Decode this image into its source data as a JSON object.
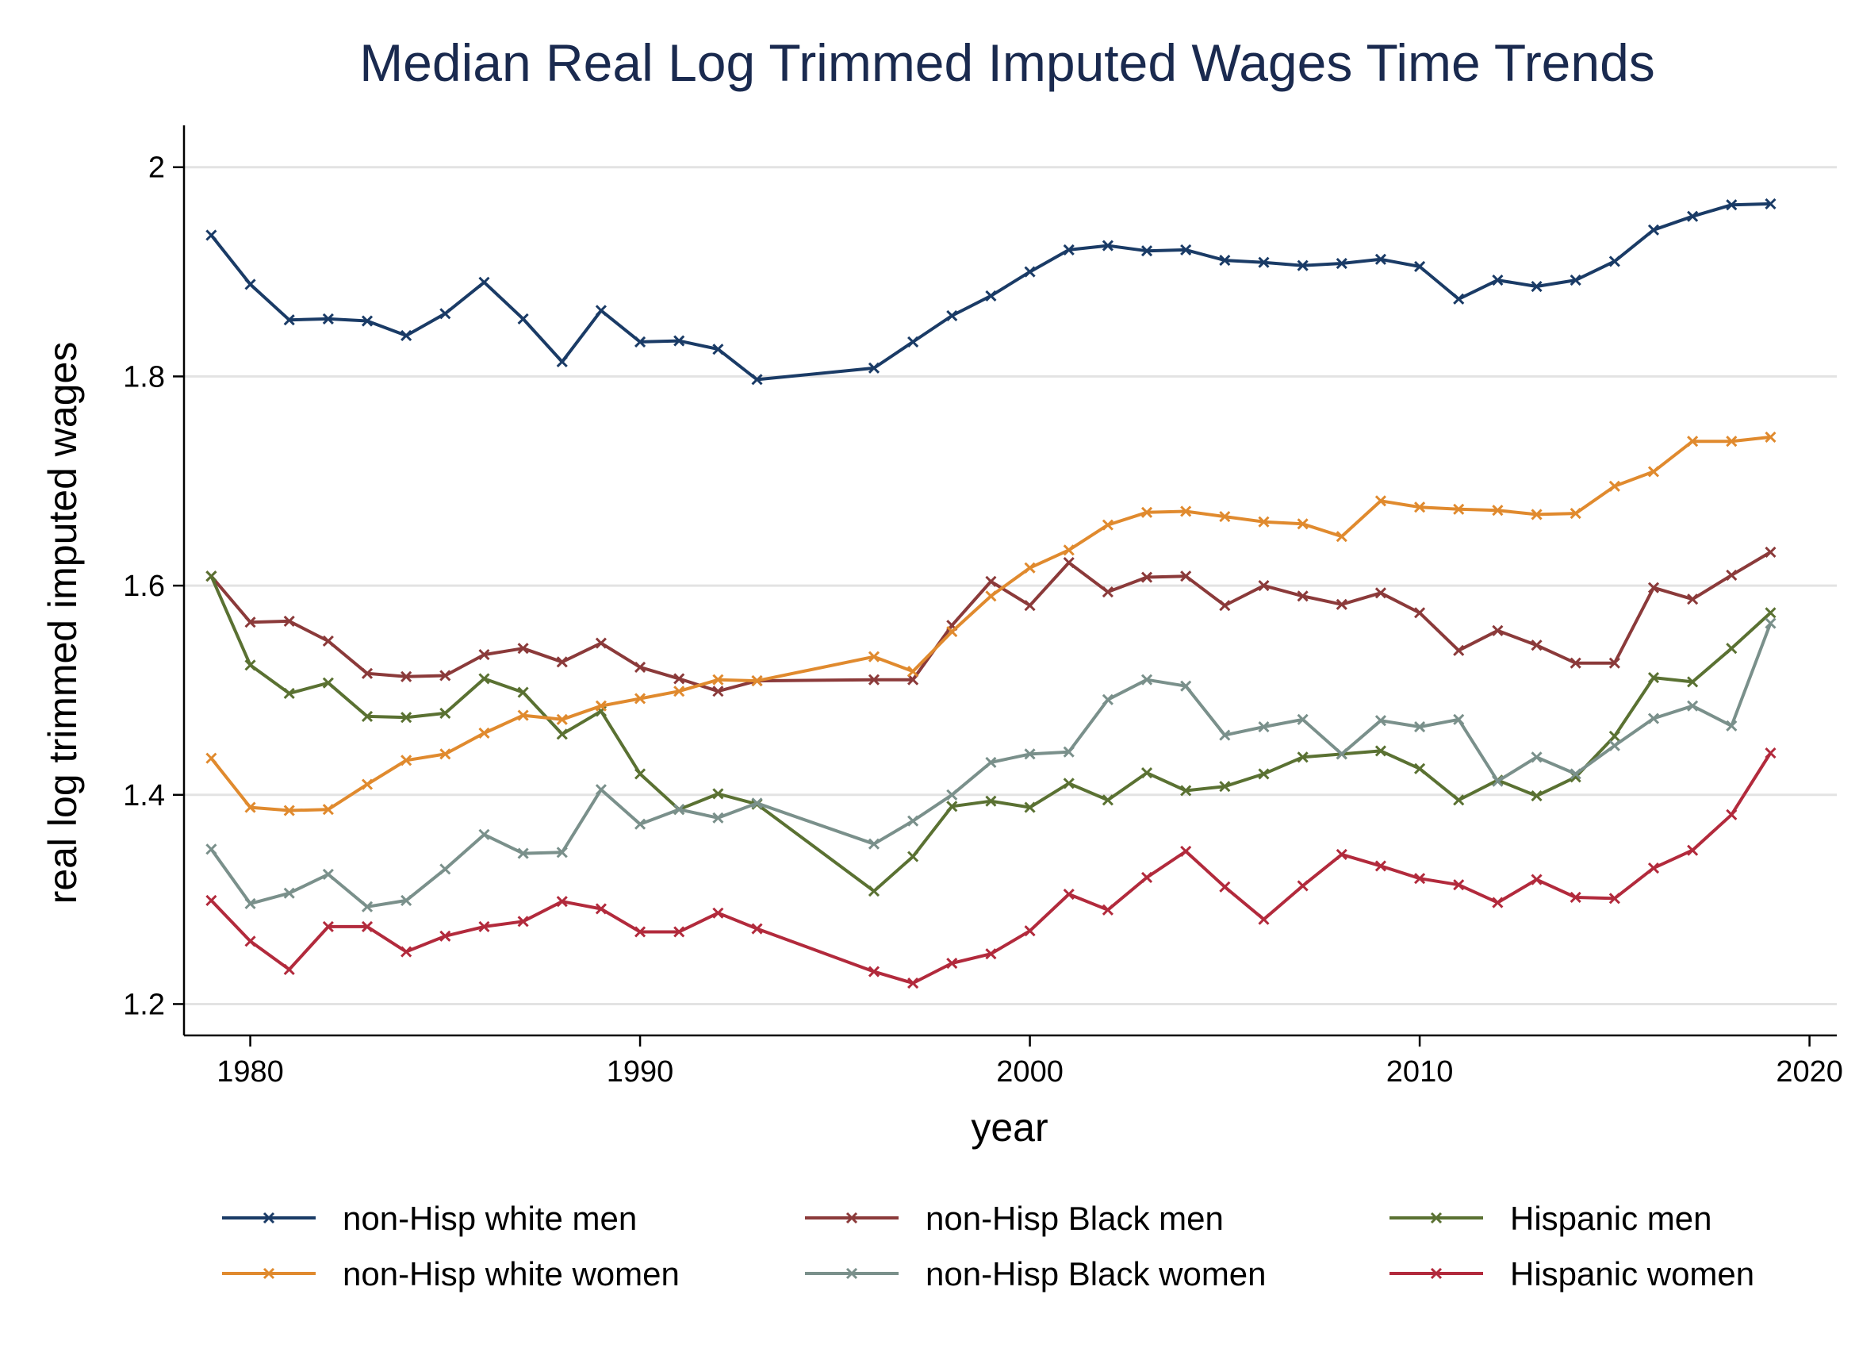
{
  "chart_data": {
    "type": "line",
    "title": "Median Real Log Trimmed Imputed Wages Time Trends",
    "xlabel": "year",
    "ylabel": "real log trimmed imputed wages",
    "xlim": [
      1978.3,
      2020.7
    ],
    "ylim": [
      1.17,
      2.04
    ],
    "xticks": [
      1980,
      1990,
      2000,
      2010,
      2020
    ],
    "yticks": [
      1.2,
      1.4,
      1.6,
      1.8,
      2.0
    ],
    "ytick_labels": [
      "1.2",
      "1.4",
      "1.6",
      "1.8",
      "2"
    ],
    "grid": "horizontal",
    "legend_position": "bottom",
    "x": [
      1979,
      1980,
      1981,
      1982,
      1983,
      1984,
      1985,
      1986,
      1987,
      1988,
      1989,
      1990,
      1991,
      1992,
      1993,
      1996,
      1997,
      1998,
      1999,
      2000,
      2001,
      2002,
      2003,
      2004,
      2005,
      2006,
      2007,
      2008,
      2009,
      2010,
      2011,
      2012,
      2013,
      2014,
      2015,
      2016,
      2017,
      2018,
      2019
    ],
    "series": [
      {
        "name": "non-Hisp white men",
        "color": "#1a3b66",
        "values": [
          1.935,
          1.888,
          1.854,
          1.855,
          1.853,
          1.839,
          1.86,
          1.89,
          1.855,
          1.814,
          1.863,
          1.833,
          1.834,
          1.826,
          1.797,
          1.808,
          1.833,
          1.858,
          1.877,
          1.9,
          1.921,
          1.925,
          1.92,
          1.921,
          1.911,
          1.909,
          1.906,
          1.908,
          1.912,
          1.905,
          1.874,
          1.892,
          1.886,
          1.892,
          1.91,
          1.94,
          1.953,
          1.964,
          1.965
        ]
      },
      {
        "name": "non-Hisp Black men",
        "color": "#8b3a3a",
        "values": [
          1.609,
          1.565,
          1.566,
          1.547,
          1.516,
          1.513,
          1.514,
          1.534,
          1.54,
          1.527,
          1.545,
          1.522,
          1.511,
          1.499,
          1.509,
          1.51,
          1.51,
          1.562,
          1.604,
          1.581,
          1.622,
          1.594,
          1.608,
          1.609,
          1.581,
          1.6,
          1.59,
          1.582,
          1.593,
          1.574,
          1.538,
          1.557,
          1.543,
          1.526,
          1.526,
          1.598,
          1.587,
          1.61,
          1.632
        ]
      },
      {
        "name": "Hispanic men",
        "color": "#5a7132",
        "values": [
          1.609,
          1.524,
          1.497,
          1.507,
          1.475,
          1.474,
          1.478,
          1.511,
          1.498,
          1.458,
          1.48,
          1.42,
          1.386,
          1.401,
          1.391,
          1.308,
          1.341,
          1.389,
          1.394,
          1.388,
          1.411,
          1.395,
          1.421,
          1.404,
          1.408,
          1.42,
          1.436,
          1.439,
          1.442,
          1.425,
          1.395,
          1.414,
          1.399,
          1.417,
          1.456,
          1.512,
          1.508,
          1.54,
          1.574
        ]
      },
      {
        "name": "non-Hisp white women",
        "color": "#e08a2e",
        "values": [
          1.435,
          1.388,
          1.385,
          1.386,
          1.41,
          1.433,
          1.439,
          1.459,
          1.476,
          1.472,
          1.485,
          1.492,
          1.499,
          1.51,
          1.509,
          1.532,
          1.518,
          1.556,
          1.59,
          1.617,
          1.634,
          1.658,
          1.67,
          1.671,
          1.666,
          1.661,
          1.659,
          1.647,
          1.681,
          1.675,
          1.673,
          1.672,
          1.668,
          1.669,
          1.695,
          1.709,
          1.738,
          1.738,
          1.742
        ]
      },
      {
        "name": "non-Hisp Black women",
        "color": "#7a908b",
        "values": [
          1.348,
          1.296,
          1.306,
          1.324,
          1.293,
          1.299,
          1.329,
          1.362,
          1.344,
          1.345,
          1.405,
          1.372,
          1.386,
          1.378,
          1.392,
          1.353,
          1.375,
          1.4,
          1.431,
          1.439,
          1.441,
          1.491,
          1.51,
          1.504,
          1.457,
          1.465,
          1.472,
          1.439,
          1.471,
          1.465,
          1.472,
          1.413,
          1.436,
          1.42,
          1.447,
          1.473,
          1.485,
          1.466,
          1.564
        ]
      },
      {
        "name": "Hispanic women",
        "color": "#b22a3c",
        "values": [
          1.299,
          1.26,
          1.233,
          1.274,
          1.274,
          1.25,
          1.265,
          1.274,
          1.279,
          1.298,
          1.291,
          1.269,
          1.269,
          1.287,
          1.272,
          1.231,
          1.22,
          1.239,
          1.248,
          1.27,
          1.305,
          1.29,
          1.321,
          1.346,
          1.312,
          1.281,
          1.313,
          1.343,
          1.332,
          1.32,
          1.314,
          1.297,
          1.319,
          1.302,
          1.301,
          1.33,
          1.347,
          1.381,
          1.44
        ]
      }
    ]
  }
}
